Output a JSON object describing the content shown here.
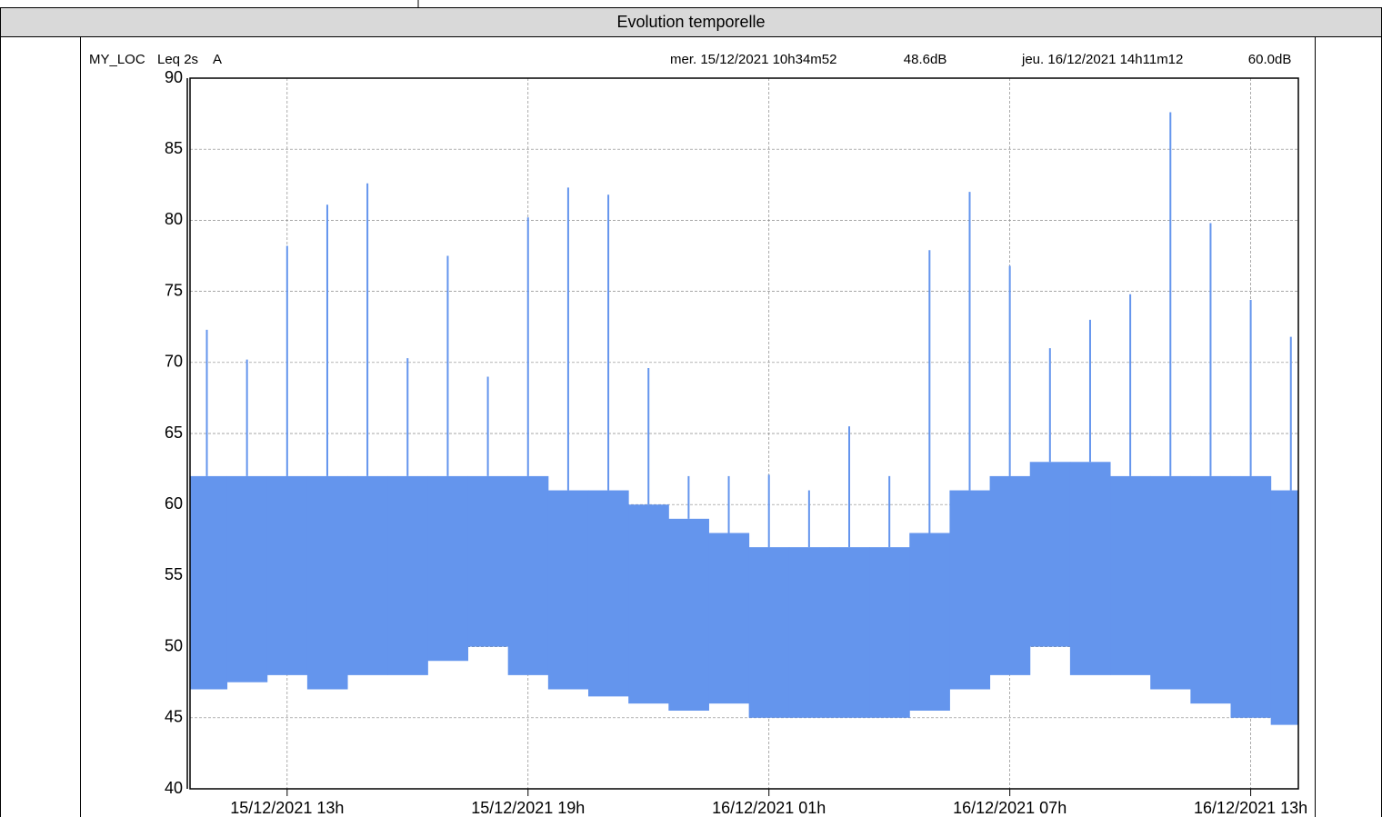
{
  "chart_data": {
    "type": "band",
    "title": "Evolution temporelle",
    "location": "MY_LOC",
    "metric": "Leq 2s",
    "weighting": "A",
    "cursor_start": {
      "time": "mer. 15/12/2021 10h34m52",
      "value": 48.6,
      "unit": "dB"
    },
    "cursor_end": {
      "time": "jeu. 16/12/2021 14h11m12",
      "value": 60,
      "value_label": "60.0",
      "unit": "dB"
    },
    "color": "#6495ed",
    "label_color": "#5b8ee6",
    "x": [
      "15/12/2021 11h",
      "15/12/2021 12h",
      "15/12/2021 13h",
      "15/12/2021 14h",
      "15/12/2021 15h",
      "15/12/2021 16h",
      "15/12/2021 17h",
      "15/12/2021 18h",
      "15/12/2021 19h",
      "15/12/2021 20h",
      "15/12/2021 21h",
      "15/12/2021 22h",
      "15/12/2021 23h",
      "16/12/2021 00h",
      "16/12/2021 01h",
      "16/12/2021 02h",
      "16/12/2021 03h",
      "16/12/2021 04h",
      "16/12/2021 05h",
      "16/12/2021 06h",
      "16/12/2021 07h",
      "16/12/2021 08h",
      "16/12/2021 09h",
      "16/12/2021 10h",
      "16/12/2021 11h",
      "16/12/2021 12h",
      "16/12/2021 13h",
      "16/12/2021 14h"
    ],
    "min": [
      47,
      47.5,
      48,
      47,
      48,
      48,
      49,
      50,
      48,
      47,
      46.5,
      46,
      45.5,
      46,
      45,
      45,
      45,
      45,
      45.5,
      47,
      48,
      50,
      48,
      48,
      47,
      46,
      45,
      44.5
    ],
    "max": [
      62,
      62,
      62,
      62,
      62,
      62,
      62,
      62,
      62,
      61,
      61,
      60,
      59,
      58,
      57,
      57,
      57,
      57,
      58,
      61,
      62,
      63,
      63,
      62,
      62,
      62,
      62,
      61
    ],
    "peak": [
      72.3,
      70.2,
      78.2,
      81.1,
      82.6,
      70.3,
      77.5,
      69,
      80.2,
      82.3,
      81.8,
      69.6,
      62,
      62,
      62.1,
      61,
      65.5,
      62,
      77.9,
      82,
      76.8,
      71,
      73,
      74.8,
      87.6,
      79.8,
      74.4,
      71.8
    ],
    "ylim": [
      40,
      90
    ],
    "yticks": [
      40,
      45,
      50,
      55,
      60,
      65,
      70,
      75,
      80,
      85,
      90
    ],
    "xticks": [
      "15/12/2021 13h",
      "15/12/2021 19h",
      "16/12/2021 01h",
      "16/12/2021 07h",
      "16/12/2021 13h"
    ],
    "grid": true
  }
}
